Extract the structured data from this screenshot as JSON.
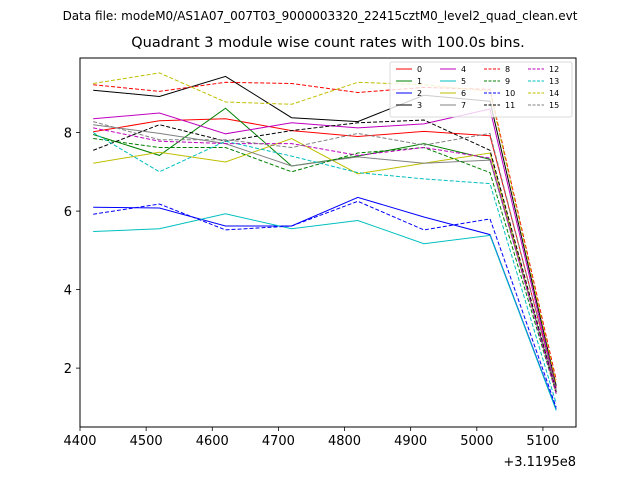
{
  "header": {
    "suptitle": "Data file: modeM0/AS1A07_007T03_9000003320_22415cztM0_level2_quad_clean.evt",
    "title": "Quadrant 3 module wise count rates with 100.0s bins."
  },
  "chart_data": {
    "type": "line",
    "title": "Quadrant 3 module wise count rates with 100.0s bins.",
    "xlabel": "",
    "ylabel": "",
    "x_offset_label": "+3.1195e8",
    "x": [
      4420,
      4520,
      4620,
      4720,
      4820,
      4920,
      5020,
      5120
    ],
    "xlim": [
      4400,
      5150
    ],
    "ylim": [
      0.5,
      9.9
    ],
    "xticks": [
      4400,
      4500,
      4600,
      4700,
      4800,
      4900,
      5000,
      5100
    ],
    "yticks": [
      2,
      4,
      6,
      8
    ],
    "grid": false,
    "legend_location": "upper right",
    "legend_columns": 4,
    "series": [
      {
        "name": "0",
        "color": "#ff0000",
        "dash": false,
        "values": [
          8.02,
          8.3,
          8.35,
          8.05,
          7.9,
          8.03,
          7.92,
          1.5
        ]
      },
      {
        "name": "1",
        "color": "#008000",
        "dash": false,
        "values": [
          7.95,
          7.42,
          8.62,
          7.15,
          7.4,
          7.72,
          7.32,
          1.4
        ]
      },
      {
        "name": "2",
        "color": "#0000ff",
        "dash": false,
        "values": [
          6.1,
          6.08,
          5.62,
          5.62,
          6.35,
          5.85,
          5.4,
          0.95
        ]
      },
      {
        "name": "3",
        "color": "#000000",
        "dash": false,
        "values": [
          9.08,
          8.92,
          9.43,
          8.38,
          8.28,
          8.95,
          8.8,
          1.55
        ]
      },
      {
        "name": "4",
        "color": "#bf00bf",
        "dash": false,
        "values": [
          8.35,
          8.5,
          7.97,
          8.25,
          8.12,
          8.22,
          8.6,
          1.45
        ]
      },
      {
        "name": "5",
        "color": "#00bfbf",
        "dash": false,
        "values": [
          5.48,
          5.55,
          5.93,
          5.55,
          5.76,
          5.17,
          5.38,
          0.92
        ]
      },
      {
        "name": "6",
        "color": "#bfbf00",
        "dash": false,
        "values": [
          7.22,
          7.5,
          7.25,
          7.85,
          6.95,
          7.22,
          7.48,
          1.35
        ]
      },
      {
        "name": "7",
        "color": "#808080",
        "dash": false,
        "values": [
          8.2,
          7.98,
          7.72,
          7.15,
          7.38,
          7.22,
          7.3,
          1.4
        ]
      },
      {
        "name": "8",
        "color": "#ff0000",
        "dash": true,
        "values": [
          9.22,
          9.05,
          9.28,
          9.25,
          9.02,
          9.15,
          9.1,
          1.7
        ]
      },
      {
        "name": "9",
        "color": "#008000",
        "dash": true,
        "values": [
          7.85,
          7.62,
          7.62,
          7.0,
          7.48,
          7.62,
          6.98,
          1.35
        ]
      },
      {
        "name": "10",
        "color": "#0000ff",
        "dash": true,
        "values": [
          5.92,
          6.18,
          5.52,
          5.62,
          6.25,
          5.52,
          5.8,
          1.0
        ]
      },
      {
        "name": "11",
        "color": "#000000",
        "dash": true,
        "values": [
          7.55,
          8.2,
          7.78,
          8.05,
          8.25,
          8.32,
          7.55,
          1.4
        ]
      },
      {
        "name": "12",
        "color": "#bf00bf",
        "dash": true,
        "values": [
          8.12,
          7.78,
          7.72,
          7.72,
          7.42,
          7.62,
          7.35,
          1.35
        ]
      },
      {
        "name": "13",
        "color": "#00bfbf",
        "dash": true,
        "values": [
          8.0,
          7.0,
          7.78,
          7.4,
          6.98,
          6.82,
          6.7,
          1.1
        ]
      },
      {
        "name": "14",
        "color": "#bfbf00",
        "dash": true,
        "values": [
          9.25,
          9.52,
          8.78,
          8.72,
          9.28,
          9.22,
          9.05,
          1.6
        ]
      },
      {
        "name": "15",
        "color": "#808080",
        "dash": true,
        "values": [
          8.28,
          7.82,
          7.82,
          7.62,
          7.98,
          7.68,
          7.98,
          1.45
        ]
      }
    ]
  }
}
